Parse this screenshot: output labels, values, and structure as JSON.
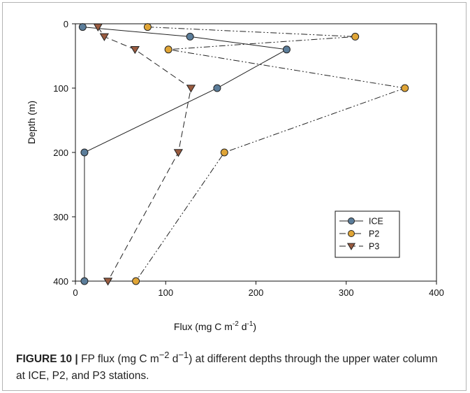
{
  "chart_data": {
    "type": "line",
    "xlabel": {
      "prefix": "Flux (mg C m",
      "sup1": "-2",
      "mid": " d",
      "sup2": "-1",
      "suffix": ")"
    },
    "ylabel": "Depth (m)",
    "xlim": [
      0,
      400
    ],
    "ylim": [
      0,
      400
    ],
    "y_inverted": true,
    "x_ticks": [
      "0",
      "100",
      "200",
      "300",
      "400"
    ],
    "y_ticks": [
      "0",
      "100",
      "200",
      "300",
      "400"
    ],
    "grid": false,
    "legend_position": "bottom-right",
    "series": [
      {
        "name": "ICE",
        "color": "#5b7d9a",
        "marker": "circle",
        "line": "solid",
        "points": [
          [
            8,
            5
          ],
          [
            127,
            20
          ],
          [
            234,
            40
          ],
          [
            157,
            100
          ],
          [
            10,
            200
          ],
          [
            10,
            400
          ]
        ]
      },
      {
        "name": "P2",
        "color": "#e0a536",
        "marker": "circle",
        "line": "dash-dot-dot",
        "points": [
          [
            80,
            5
          ],
          [
            310,
            20
          ],
          [
            103,
            40
          ],
          [
            365,
            100
          ],
          [
            165,
            200
          ],
          [
            67,
            400
          ]
        ]
      },
      {
        "name": "P3",
        "color": "#9a5b3f",
        "marker": "triangle-down",
        "line": "dashed",
        "points": [
          [
            25,
            5
          ],
          [
            32,
            20
          ],
          [
            66,
            40
          ],
          [
            128,
            100
          ],
          [
            114,
            200
          ],
          [
            36,
            400
          ]
        ]
      }
    ]
  },
  "caption": {
    "label": "FIGURE 10 |",
    "text_a": " FP flux (mg C m",
    "sup1": "−2",
    "text_b": " d",
    "sup2": "−1",
    "text_c": ") at different depths through the upper water column at ICE, P2, and P3 stations."
  }
}
